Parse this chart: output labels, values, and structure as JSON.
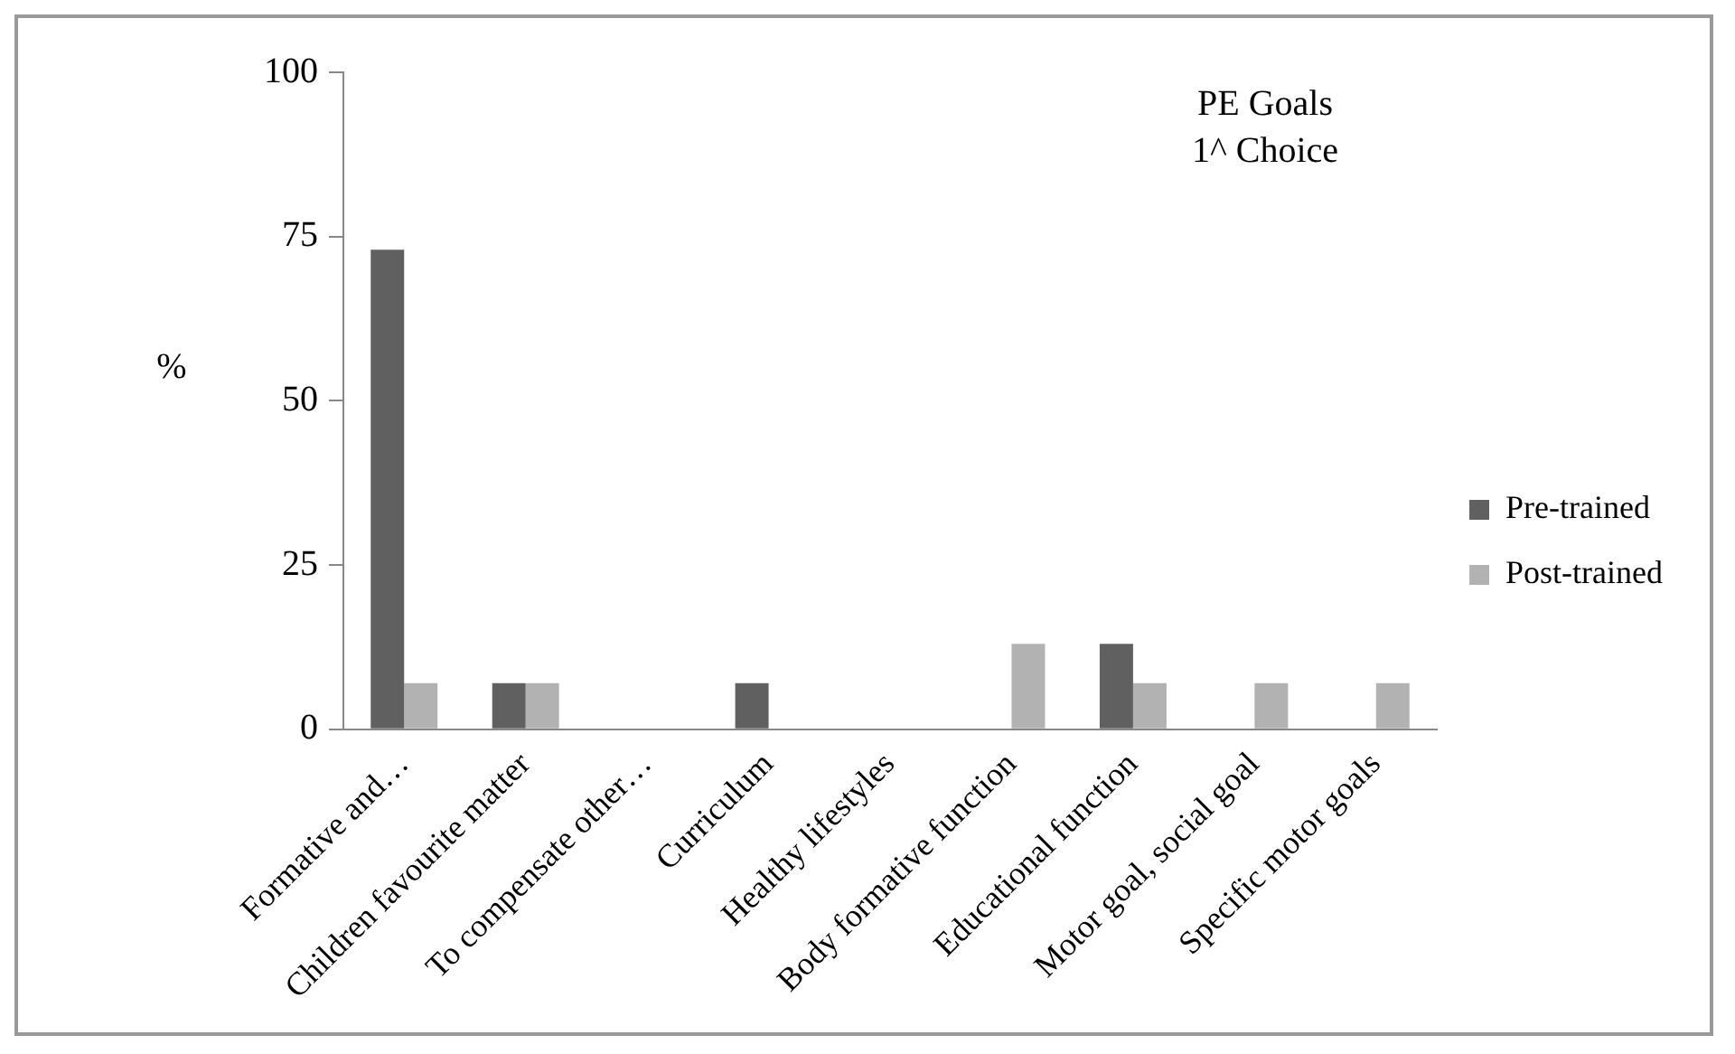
{
  "chart_data": {
    "type": "bar",
    "title": "PE Goals",
    "subtitle": "1^ Choice",
    "ylabel": "%",
    "categories": [
      "Formative and…",
      "Children favourite matter",
      "To compensate other…",
      "Curriculum",
      "Healthy lifestyles",
      "Body formative function",
      "Educational function",
      "Motor goal, social goal",
      "Specific motor goals"
    ],
    "series": [
      {
        "name": "Pre-trained",
        "color": "#606060",
        "values": [
          73,
          7,
          0,
          7,
          0,
          0,
          13,
          0,
          0
        ]
      },
      {
        "name": "Post-trained",
        "color": "#b2b2b2",
        "values": [
          7,
          7,
          0,
          0,
          0,
          13,
          7,
          7,
          7
        ]
      }
    ],
    "ylim": [
      0,
      100
    ],
    "yticks": [
      0,
      25,
      50,
      75,
      100
    ],
    "grid": false,
    "legend": "right"
  }
}
